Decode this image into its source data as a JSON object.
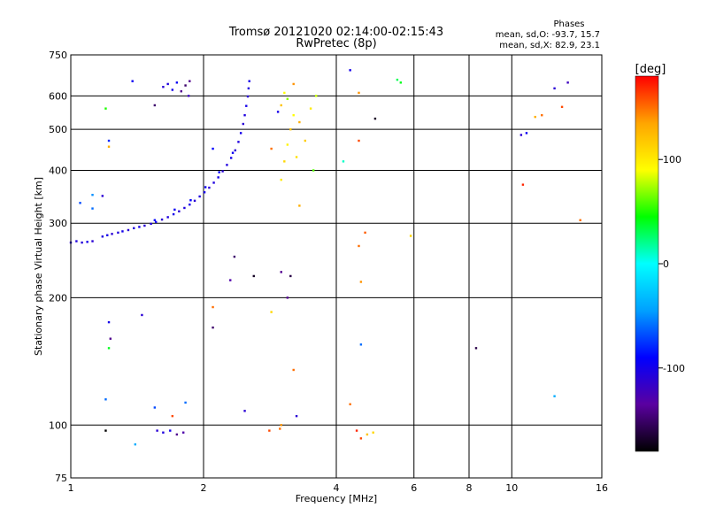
{
  "chart_data": {
    "type": "scatter",
    "title": "Tromsø 20121020 02:14:00-02:15:43",
    "subtitle": "RwPretec (8p)",
    "xlabel": "Frequency [MHz]",
    "ylabel": "Stationary phase Virtual Height [km]",
    "x_scale": "log",
    "y_scale": "log",
    "xlim": [
      1,
      16
    ],
    "ylim": [
      75,
      750
    ],
    "x_ticks": [
      1,
      2,
      4,
      6,
      8,
      10,
      16
    ],
    "y_ticks": [
      75,
      100,
      200,
      300,
      400,
      500,
      600,
      750
    ],
    "grid": true,
    "legend": {
      "header": "Phases",
      "line1": "mean, sd,O: -93.7, 15.7",
      "line2": "mean, sd,X: 82.9, 23.1"
    },
    "colorbar": {
      "label": "[deg]",
      "range": [
        -180,
        180
      ],
      "ticks": [
        100,
        0,
        -100
      ],
      "colors": [
        "#000000",
        "#5a00a0",
        "#0000ff",
        "#00a0ff",
        "#00ffff",
        "#00ff00",
        "#ffff00",
        "#ffa500",
        "#ff0000"
      ]
    },
    "points": [
      [
        1.0,
        270,
        -110
      ],
      [
        1.03,
        272,
        -105
      ],
      [
        1.06,
        270,
        -108
      ],
      [
        1.09,
        271,
        -100
      ],
      [
        1.12,
        272,
        -110
      ],
      [
        1.18,
        279,
        -105
      ],
      [
        1.21,
        281,
        -100
      ],
      [
        1.24,
        283,
        -110
      ],
      [
        1.28,
        285,
        -105
      ],
      [
        1.31,
        287,
        -100
      ],
      [
        1.35,
        289,
        -110
      ],
      [
        1.39,
        292,
        -105
      ],
      [
        1.43,
        294,
        -100
      ],
      [
        1.47,
        296,
        -110
      ],
      [
        1.52,
        299,
        -105
      ],
      [
        1.56,
        302,
        -100
      ],
      [
        1.61,
        306,
        -110
      ],
      [
        1.66,
        310,
        -105
      ],
      [
        1.71,
        315,
        -100
      ],
      [
        1.76,
        320,
        -110
      ],
      [
        1.81,
        326,
        -105
      ],
      [
        1.86,
        332,
        -100
      ],
      [
        1.91,
        339,
        -110
      ],
      [
        1.96,
        347,
        -105
      ],
      [
        2.01,
        355,
        -100
      ],
      [
        2.06,
        364,
        -110
      ],
      [
        2.11,
        374,
        -105
      ],
      [
        2.16,
        385,
        -100
      ],
      [
        2.21,
        398,
        -110
      ],
      [
        2.26,
        412,
        -105
      ],
      [
        2.31,
        428,
        -100
      ],
      [
        2.36,
        446,
        -110
      ],
      [
        2.4,
        467,
        -105
      ],
      [
        2.43,
        490,
        -100
      ],
      [
        2.46,
        515,
        -110
      ],
      [
        2.48,
        540,
        -105
      ],
      [
        2.5,
        568,
        -100
      ],
      [
        2.52,
        598,
        -110
      ],
      [
        2.53,
        625,
        -105
      ],
      [
        2.54,
        650,
        -100
      ],
      [
        1.55,
        305,
        -90
      ],
      [
        1.72,
        323,
        -95
      ],
      [
        1.87,
        340,
        -90
      ],
      [
        2.02,
        365,
        -95
      ],
      [
        2.17,
        396,
        -90
      ],
      [
        2.33,
        440,
        -95
      ],
      [
        1.62,
        630,
        -110
      ],
      [
        1.66,
        640,
        -105
      ],
      [
        1.7,
        620,
        -100
      ],
      [
        1.74,
        645,
        -95
      ],
      [
        1.78,
        615,
        -140
      ],
      [
        1.82,
        635,
        -150
      ],
      [
        1.86,
        650,
        -140
      ],
      [
        3.0,
        380,
        100
      ],
      [
        3.05,
        420,
        110
      ],
      [
        3.1,
        460,
        95
      ],
      [
        3.15,
        500,
        120
      ],
      [
        3.2,
        540,
        90
      ],
      [
        3.25,
        430,
        105
      ],
      [
        3.1,
        590,
        70
      ],
      [
        3.3,
        520,
        130
      ],
      [
        3.5,
        560,
        100
      ],
      [
        3.6,
        600,
        80
      ],
      [
        3.4,
        470,
        115
      ],
      [
        3.55,
        400,
        60
      ],
      [
        3.2,
        640,
        140
      ],
      [
        2.85,
        450,
        150
      ],
      [
        2.95,
        550,
        -100
      ],
      [
        1.57,
        97,
        -110
      ],
      [
        1.62,
        96,
        -105
      ],
      [
        1.68,
        97,
        -100
      ],
      [
        1.74,
        95,
        -140
      ],
      [
        1.8,
        96,
        -130
      ],
      [
        2.48,
        108,
        -110
      ],
      [
        2.82,
        97,
        160
      ],
      [
        2.98,
        98,
        150
      ],
      [
        3.0,
        100,
        140
      ],
      [
        3.2,
        135,
        150
      ],
      [
        3.25,
        105,
        -110
      ],
      [
        4.3,
        112,
        150
      ],
      [
        4.45,
        97,
        170
      ],
      [
        4.55,
        93,
        160
      ],
      [
        4.7,
        95,
        120
      ],
      [
        4.85,
        96,
        110
      ],
      [
        4.55,
        155,
        -60
      ],
      [
        4.5,
        265,
        150
      ],
      [
        4.65,
        285,
        155
      ],
      [
        4.55,
        218,
        140
      ],
      [
        1.2,
        560,
        50
      ],
      [
        1.22,
        470,
        -80
      ],
      [
        1.22,
        455,
        130
      ],
      [
        1.38,
        650,
        -95
      ],
      [
        1.55,
        570,
        -150
      ],
      [
        1.85,
        600,
        -120
      ],
      [
        2.1,
        450,
        -90
      ],
      [
        2.3,
        220,
        -130
      ],
      [
        2.35,
        250,
        -150
      ],
      [
        2.6,
        225,
        -170
      ],
      [
        3.0,
        230,
        -140
      ],
      [
        3.15,
        225,
        -160
      ],
      [
        3.0,
        570,
        120
      ],
      [
        3.05,
        610,
        90
      ],
      [
        3.3,
        330,
        130
      ],
      [
        4.15,
        420,
        10
      ],
      [
        4.3,
        690,
        -100
      ],
      [
        4.5,
        610,
        140
      ],
      [
        4.5,
        470,
        160
      ],
      [
        4.9,
        530,
        -170
      ],
      [
        5.5,
        655,
        30
      ],
      [
        5.6,
        645,
        40
      ],
      [
        5.9,
        280,
        110
      ],
      [
        8.3,
        152,
        -160
      ],
      [
        10.5,
        485,
        -110
      ],
      [
        10.8,
        490,
        -95
      ],
      [
        10.6,
        370,
        170
      ],
      [
        11.3,
        535,
        130
      ],
      [
        11.7,
        540,
        150
      ],
      [
        12.5,
        625,
        -110
      ],
      [
        13.0,
        565,
        160
      ],
      [
        13.4,
        645,
        -120
      ],
      [
        14.3,
        305,
        150
      ],
      [
        12.5,
        117,
        -40
      ],
      [
        1.18,
        348,
        -110
      ],
      [
        1.12,
        325,
        -60
      ],
      [
        1.12,
        350,
        -50
      ],
      [
        1.05,
        335,
        -70
      ],
      [
        1.22,
        175,
        -100
      ],
      [
        1.23,
        160,
        -140
      ],
      [
        1.22,
        152,
        40
      ],
      [
        1.2,
        115,
        -60
      ],
      [
        1.45,
        182,
        -110
      ],
      [
        1.55,
        110,
        -70
      ],
      [
        1.7,
        105,
        160
      ],
      [
        1.82,
        113,
        -60
      ],
      [
        1.2,
        97,
        -180
      ],
      [
        1.4,
        90,
        -40
      ],
      [
        2.1,
        190,
        150
      ],
      [
        2.1,
        170,
        -150
      ],
      [
        2.85,
        185,
        110
      ],
      [
        3.1,
        200,
        -140
      ]
    ]
  }
}
